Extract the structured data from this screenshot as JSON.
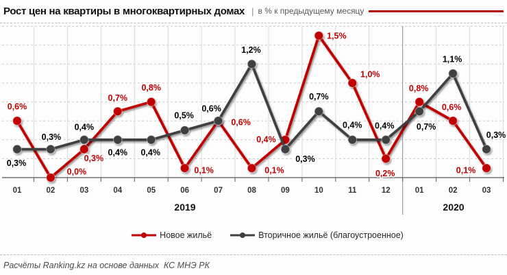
{
  "header": {
    "title": "Рост цен на квартиры в многоквартирных домах",
    "separator": "|",
    "subtitle": "в % к предыдущему месяцу",
    "accent_color": "#b00000"
  },
  "chart_data": {
    "type": "line",
    "unit": "% к предыдущему месяцу",
    "x_groups": [
      {
        "year": "2019",
        "months": [
          "01",
          "02",
          "03",
          "04",
          "05",
          "06",
          "07",
          "08",
          "09",
          "10",
          "11",
          "12"
        ],
        "year_label_x": 270
      },
      {
        "year": "2020",
        "months": [
          "01",
          "02",
          "03"
        ],
        "year_label_x": 662
      }
    ],
    "ylim": [
      0,
      1.6
    ],
    "grid_step": 0.2,
    "grid": "horizontal-dashed, vertical-solid",
    "legend_position": "bottom",
    "series": [
      {
        "name": "Новое жильё",
        "color": "#c00000",
        "label_color": "#c00000",
        "values": [
          0.6,
          0.0,
          0.3,
          0.7,
          0.8,
          0.1,
          0.6,
          0.1,
          0.4,
          1.5,
          1.0,
          0.2,
          0.8,
          0.6,
          0.1
        ],
        "labels": [
          "0,6%",
          "0,0%",
          "0,3%",
          "0,7%",
          "0,8%",
          "0,1%",
          "0,6%",
          "0,1%",
          "0,4%",
          "1,5%",
          "1,0%",
          "0,2%",
          "0,8%",
          "0,6%",
          "0,1%"
        ],
        "label_offsets": [
          [
            0,
            -21
          ],
          [
            38,
            -9
          ],
          [
            14,
            13
          ],
          [
            0,
            -20
          ],
          [
            0,
            -21
          ],
          [
            28,
            3
          ],
          [
            33,
            2
          ],
          [
            33,
            3
          ],
          [
            -28,
            -1
          ],
          [
            26,
            0
          ],
          [
            26,
            -13
          ],
          [
            -1,
            21
          ],
          [
            -1,
            -20
          ],
          [
            -2,
            -20
          ],
          [
            -30,
            3
          ]
        ]
      },
      {
        "name": "Вторичное жильё (благоустроенное)",
        "color": "#3f3f3f",
        "label_color": "#000000",
        "values": [
          0.3,
          0.3,
          0.4,
          0.4,
          0.4,
          0.5,
          0.6,
          1.2,
          0.3,
          0.7,
          0.4,
          0.4,
          0.7,
          1.1,
          0.3
        ],
        "labels": [
          "0,3%",
          "0,3%",
          "0,4%",
          "0,4%",
          "0,4%",
          "0,5%",
          "0,6%",
          "1,2%",
          "0,3%",
          "0,7%",
          "0,4%",
          "0,4%",
          "0,7%",
          "1,1%",
          "0,3%"
        ],
        "label_offsets": [
          [
            -1,
            20
          ],
          [
            1,
            -18
          ],
          [
            0,
            -19
          ],
          [
            0,
            18
          ],
          [
            -1,
            18
          ],
          [
            -1,
            -22
          ],
          [
            -10,
            -18
          ],
          [
            -1,
            -21
          ],
          [
            29,
            14
          ],
          [
            0,
            -22
          ],
          [
            0,
            -22
          ],
          [
            -2,
            -21
          ],
          [
            10,
            22
          ],
          [
            -1,
            -21
          ],
          [
            14,
            -21
          ]
        ]
      }
    ]
  },
  "footer": {
    "text": "Расчёты Ranking.kz на основе данных  КС МНЭ РК"
  }
}
